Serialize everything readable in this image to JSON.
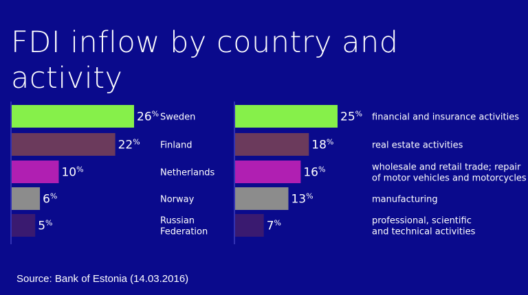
{
  "title_line1": "FDI inflow by country and",
  "title_line2": "activity",
  "source": "Source: Bank of Estonia (14.03.2016)",
  "chart_data": [
    {
      "type": "bar",
      "orientation": "horizontal",
      "categories": [
        [
          "Sweden"
        ],
        [
          "Finland"
        ],
        [
          "Netherlands"
        ],
        [
          "Norway"
        ],
        [
          "Russian",
          "Federation"
        ]
      ],
      "values": [
        26,
        22,
        10,
        6,
        5
      ],
      "value_labels": [
        "26",
        "22",
        "10",
        "6",
        "5"
      ],
      "unit": "%",
      "colors": [
        "#86f04a",
        "#6b3a5c",
        "#b01fb2",
        "#8c8c8c",
        "#3a1a70"
      ],
      "max": 26
    },
    {
      "type": "bar",
      "orientation": "horizontal",
      "categories": [
        [
          "financial and insurance activities"
        ],
        [
          "real estate activities"
        ],
        [
          "wholesale and retail trade; repair",
          "of motor vehicles and motorcycles"
        ],
        [
          "manufacturing"
        ],
        [
          "professional, scientific",
          "and technical activities"
        ]
      ],
      "values": [
        25,
        18,
        16,
        13,
        7
      ],
      "value_labels": [
        "25",
        "18",
        "16",
        "13",
        "7"
      ],
      "unit": "%",
      "colors": [
        "#86f04a",
        "#6b3a5c",
        "#b01fb2",
        "#8c8c8c",
        "#3a1a70"
      ],
      "max": 25
    }
  ]
}
